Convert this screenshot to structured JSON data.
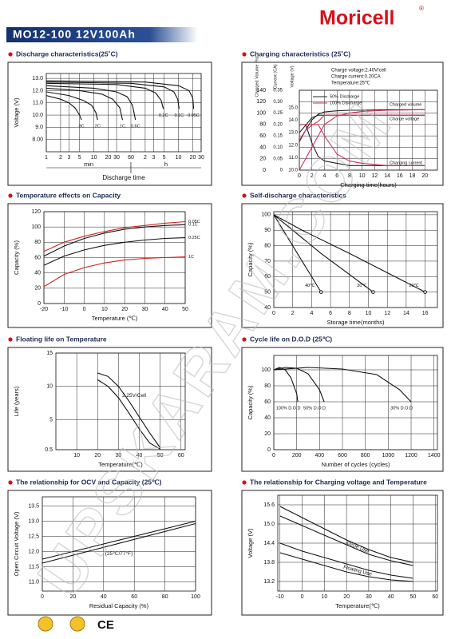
{
  "header": {
    "model": "MO12-100 12V100Ah",
    "brand": "Moricell",
    "mark": "®"
  },
  "watermark": "UPSKARAM.COM",
  "footer": {
    "cert": "CE"
  },
  "chart_data": [
    {
      "type": "line",
      "title": "Discharge characteristics(25˚C)",
      "ylabel": "Voltage (V)",
      "xlabel": "Discharge time",
      "x_sections": [
        "min",
        "h"
      ],
      "xlog": true,
      "grid": true,
      "xlim": [
        1,
        1800
      ],
      "xticks": [
        1,
        2,
        3,
        5,
        10,
        20,
        30,
        60,
        {
          "value": 120,
          "label": "2"
        },
        {
          "value": 180,
          "label": "3"
        },
        {
          "value": 300,
          "label": "5"
        },
        {
          "value": 600,
          "label": "10"
        },
        {
          "value": 1200,
          "label": "20"
        },
        {
          "value": 1800,
          "label": "30"
        }
      ],
      "ylim": [
        7,
        13.4
      ],
      "yticks": [
        {
          "value": 8,
          "label": "8.00"
        },
        {
          "value": 9,
          "label": "9.0"
        },
        {
          "value": 10,
          "label": "10.0"
        },
        {
          "value": 11,
          "label": "11.0"
        },
        {
          "value": 12,
          "label": "12.0"
        },
        {
          "value": 13,
          "label": "13.0"
        }
      ],
      "series": [
        {
          "name": "3C",
          "color": "#111111",
          "x": [
            1,
            2,
            3,
            4,
            5,
            5.5
          ],
          "values": [
            11.6,
            11.3,
            11.0,
            10.6,
            10.0,
            9.6
          ]
        },
        {
          "name": "2C",
          "color": "#111111",
          "x": [
            1,
            3,
            6,
            9,
            11,
            12
          ],
          "values": [
            11.9,
            11.6,
            11.2,
            10.8,
            10.2,
            9.6
          ]
        },
        {
          "name": "1C",
          "color": "#111111",
          "x": [
            1,
            5,
            15,
            25,
            35,
            40
          ],
          "values": [
            12.2,
            12.0,
            11.7,
            11.3,
            10.6,
            9.6
          ]
        },
        {
          "name": "0.6C",
          "color": "#111111",
          "x": [
            1,
            10,
            30,
            50,
            65,
            75
          ],
          "values": [
            12.4,
            12.2,
            11.9,
            11.5,
            10.8,
            9.6
          ]
        },
        {
          "name": "0.2C",
          "color": "#111111",
          "x": [
            1,
            30,
            120,
            200,
            260,
            290
          ],
          "values": [
            12.6,
            12.5,
            12.2,
            11.8,
            11.2,
            10.5
          ]
        },
        {
          "name": "0.1C",
          "color": "#111111",
          "x": [
            1,
            60,
            300,
            480,
            580,
            620
          ],
          "values": [
            12.7,
            12.6,
            12.3,
            11.9,
            11.3,
            10.5
          ]
        },
        {
          "name": "0.05C",
          "color": "#111111",
          "x": [
            1,
            120,
            600,
            1000,
            1200,
            1250
          ],
          "values": [
            12.8,
            12.7,
            12.4,
            12.0,
            11.4,
            10.5
          ]
        }
      ]
    },
    {
      "type": "line",
      "title": "Charging characteristics (25˚C)",
      "ylabel": "Charged Volume (%)",
      "y2label": "Current (CA)",
      "y3label": "Voltage (V)",
      "xlabel": "Charging time(hours)",
      "grid": true,
      "notes": [
        "Charge voltage:2.40V/cell",
        "Charge current:0.20CA",
        "Temperature:25℃"
      ],
      "curve_labels": [
        "Charged volume",
        "Charge voltage",
        "Charging current"
      ],
      "xlim": [
        0,
        22
      ],
      "xticks": [
        0,
        2,
        4,
        6,
        8,
        10,
        12,
        14,
        16,
        18,
        20
      ],
      "ylim": [
        0,
        140
      ],
      "yticks": [
        0,
        20,
        40,
        60,
        80,
        100,
        120,
        140
      ],
      "y2lim": [
        0,
        0.35
      ],
      "y2ticks": [
        0,
        {
          "value": 0.05,
          "label": "0.05"
        },
        {
          "value": 0.1,
          "label": "0.10"
        },
        {
          "value": 0.15,
          "label": "0.15"
        },
        {
          "value": 0.2,
          "label": "0.20"
        },
        {
          "value": 0.25,
          "label": "0.25"
        },
        {
          "value": 0.3,
          "label": "0.30"
        },
        {
          "value": 0.35,
          "label": "0.35"
        }
      ],
      "y3lim": [
        10,
        16.4
      ],
      "y3ticks": [
        {
          "value": 10,
          "label": "10.0"
        },
        {
          "value": 11,
          "label": "11.0"
        },
        {
          "value": 12,
          "label": "12.0"
        },
        {
          "value": 13,
          "label": "13.0"
        },
        {
          "value": 14,
          "label": "14.0"
        },
        {
          "value": 15,
          "label": "15.0"
        }
      ],
      "x": [
        0,
        1,
        2,
        3,
        4,
        6,
        8,
        10,
        14,
        20
      ],
      "series": [
        {
          "name": "50% Discharge",
          "color": "#222222",
          "values": [
            50,
            70,
            88,
            98,
            102,
            104,
            105,
            105,
            106,
            106
          ],
          "current": [
            0.2,
            0.2,
            0.12,
            0.06,
            0.04,
            0.03,
            0.02,
            0.02,
            0.02,
            0.02
          ],
          "voltage": [
            13.0,
            13.6,
            14.2,
            14.4,
            14.4,
            14.4,
            14.4,
            14.4,
            14.4,
            14.4
          ]
        },
        {
          "name": "100% Discharge",
          "color": "#d0305a",
          "values": [
            0,
            20,
            40,
            60,
            80,
            95,
            100,
            103,
            105,
            106
          ],
          "current": [
            0.2,
            0.2,
            0.2,
            0.2,
            0.15,
            0.07,
            0.04,
            0.03,
            0.02,
            0.02
          ],
          "voltage": [
            12.4,
            13.2,
            13.6,
            13.9,
            14.4,
            14.4,
            14.4,
            14.4,
            14.4,
            14.4
          ]
        }
      ]
    },
    {
      "type": "line",
      "title": "Temperature effects on Capacity",
      "ylabel": "Capacity (%)",
      "xlabel": "Temperature (℃)",
      "grid": true,
      "xlim": [
        -20,
        50
      ],
      "xticks": [
        -20,
        -10,
        0,
        10,
        20,
        30,
        40,
        50
      ],
      "ylim": [
        0,
        120
      ],
      "yticks": [
        0,
        20,
        40,
        60,
        80,
        100,
        120
      ],
      "x": [
        -20,
        -10,
        0,
        10,
        20,
        30,
        40,
        50
      ],
      "series": [
        {
          "name": "0.05C",
          "color": "#d22222",
          "values": [
            68,
            80,
            88,
            94,
            99,
            102,
            105,
            107
          ]
        },
        {
          "name": "0.1C",
          "color": "#111111",
          "values": [
            62,
            75,
            85,
            92,
            97,
            100,
            102,
            103
          ]
        },
        {
          "name": "0.25C",
          "color": "#111111",
          "values": [
            50,
            62,
            70,
            76,
            80,
            83,
            85,
            86
          ]
        },
        {
          "name": "1C",
          "color": "#d22222",
          "values": [
            22,
            38,
            47,
            53,
            57,
            59,
            60,
            61
          ]
        }
      ]
    },
    {
      "type": "line",
      "title": "Self-discharge characteristics",
      "ylabel": "Capacity (%)",
      "xlabel": "Storage time(months)",
      "grid": true,
      "xlim": [
        0,
        17.3
      ],
      "xticks": [
        0,
        2,
        4,
        6,
        8,
        10,
        12,
        14,
        16
      ],
      "ylim": [
        40,
        102
      ],
      "yticks": [
        40,
        50,
        60,
        70,
        80,
        90,
        100
      ],
      "series": [
        {
          "name": "40℃",
          "color": "#111111",
          "x": [
            0,
            1,
            2.5,
            5
          ],
          "values": [
            100,
            90,
            75,
            50
          ]
        },
        {
          "name": "30℃",
          "color": "#111111",
          "x": [
            0,
            2,
            5,
            10.5
          ],
          "values": [
            100,
            90,
            75,
            50
          ]
        },
        {
          "name": "20℃",
          "color": "#111111",
          "x": [
            0,
            3,
            8,
            16
          ],
          "values": [
            100,
            90,
            75,
            50
          ]
        }
      ]
    },
    {
      "type": "line",
      "title": "Floating life on Temperature",
      "ylabel": "Life (years)",
      "xlabel": "Temperature(℃)",
      "grid": true,
      "xlim": [
        0,
        62
      ],
      "xticks": [
        10,
        20,
        30,
        40,
        50,
        60
      ],
      "ylim": [
        0.5,
        15
      ],
      "yticks": [
        0.5,
        5,
        10,
        15
      ],
      "x": [
        20,
        25,
        30,
        35,
        40,
        45,
        50
      ],
      "series": [
        {
          "name": "2.25V/Cell",
          "color": "#111111",
          "upper": [
            12,
            11.5,
            10,
            7.8,
            5.4,
            3,
            0.8
          ],
          "lower": [
            11,
            10,
            8.3,
            6,
            3.6,
            1.5,
            0.6
          ]
        }
      ]
    },
    {
      "type": "line",
      "title": "Cycle life on D.O.D (25℃)",
      "ylabel": "Capacity (%)",
      "xlabel": "Number of cycles (cycles)",
      "grid": true,
      "xlim": [
        0,
        1430
      ],
      "xticks": [
        0,
        200,
        400,
        600,
        800,
        1000,
        1200,
        1400
      ],
      "ylim": [
        0,
        118
      ],
      "yticks": [
        0,
        20,
        40,
        60,
        80,
        100
      ],
      "series": [
        {
          "name": "100% D.O.D",
          "color": "#111111",
          "x": [
            0,
            50,
            100,
            150,
            200,
            210
          ],
          "values": [
            100,
            103,
            100,
            90,
            70,
            60
          ]
        },
        {
          "name": "50% D.O.D",
          "color": "#111111",
          "x": [
            0,
            100,
            200,
            300,
            400,
            440
          ],
          "values": [
            100,
            103,
            102,
            95,
            75,
            60
          ]
        },
        {
          "name": "30% D.O.D",
          "color": "#111111",
          "x": [
            0,
            300,
            600,
            900,
            1100,
            1200
          ],
          "values": [
            100,
            103,
            101,
            94,
            75,
            60
          ]
        }
      ]
    },
    {
      "type": "line",
      "title": "The relationship  for OCV and Capacity (25℃)",
      "ylabel": "Open Circuit Voltage (V)",
      "xlabel": "Residual Capacity (%)",
      "grid": true,
      "xlim": [
        0,
        100
      ],
      "xticks": [
        0,
        20,
        40,
        60,
        80,
        100
      ],
      "ylim": [
        10.7,
        13.8
      ],
      "yticks": [
        {
          "value": 11,
          "label": "11.0"
        },
        11.5,
        {
          "value": 12,
          "label": "12.0"
        },
        12.5,
        {
          "value": 13,
          "label": "13.0"
        },
        13.5
      ],
      "x": [
        0,
        100
      ],
      "series": [
        {
          "name": "(25℃/77°F)",
          "color": "#111111",
          "upper": [
            11.75,
            13.0
          ],
          "lower": [
            11.62,
            12.92
          ]
        }
      ]
    },
    {
      "type": "line",
      "title": "The relationship for Charging voltage and Temperature",
      "ylabel": "Voltage (V)",
      "xlabel": "Temperature(℃)",
      "grid": true,
      "xlim": [
        -11,
        61
      ],
      "xticks": [
        -10,
        0,
        10,
        20,
        30,
        40,
        50,
        60
      ],
      "ylim": [
        12.9,
        15.9
      ],
      "yticks": [
        13.2,
        13.8,
        14.4,
        {
          "value": 15,
          "label": "15.0"
        },
        15.6
      ],
      "x": [
        -10,
        0,
        10,
        20,
        30,
        40,
        50
      ],
      "series": [
        {
          "name": "Cycle Use",
          "color": "#111111",
          "upper": [
            15.55,
            15.2,
            14.85,
            14.5,
            14.2,
            13.95,
            13.8
          ],
          "lower": [
            15.25,
            14.95,
            14.65,
            14.35,
            14.05,
            13.85,
            13.7
          ]
        },
        {
          "name": "Floating Use",
          "color": "#111111",
          "upper": [
            14.4,
            14.15,
            13.95,
            13.75,
            13.55,
            13.4,
            13.3
          ],
          "lower": [
            14.1,
            13.9,
            13.7,
            13.5,
            13.35,
            13.25,
            13.2
          ]
        }
      ]
    }
  ]
}
